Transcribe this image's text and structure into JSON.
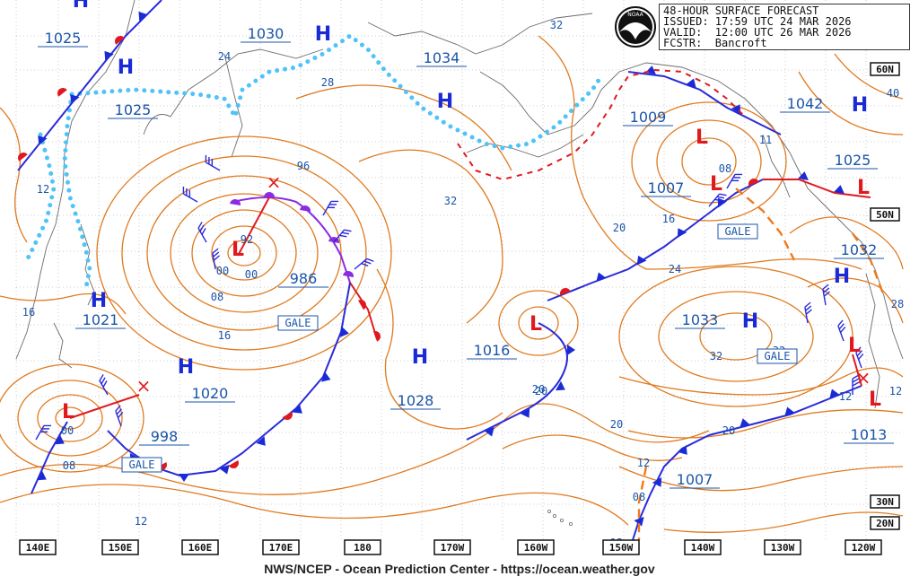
{
  "header": {
    "title": "48-HOUR SURFACE FORECAST",
    "issued": "ISSUED: 17:59 UTC 24 MAR 2026",
    "valid": "VALID:  12:00 UTC 26 MAR 2026",
    "forecaster": "FCSTR:  Bancroft",
    "logo_text": "NOAA"
  },
  "footer": {
    "credit": "NWS/NCEP - Ocean Prediction Center - https://ocean.weather.gov"
  },
  "colors": {
    "isobar": "#e07a1f",
    "high": "#1a2bd6",
    "low": "#e0191f",
    "ice": "#4fc3f7",
    "occluded": "#8a2be2",
    "label": "#1a55a8",
    "grid": "#9a9a9a"
  },
  "longitudes": [
    "140E",
    "150E",
    "160E",
    "170E",
    "180",
    "170W",
    "160W",
    "150W",
    "140W",
    "130W",
    "120W"
  ],
  "latitudes": [
    "60N",
    "50N",
    "30N",
    "20N"
  ],
  "pressure_centers": [
    {
      "type": "H",
      "value": "1025"
    },
    {
      "type": "H",
      "value": "1025"
    },
    {
      "type": "H",
      "value": "1030"
    },
    {
      "type": "H",
      "value": "1034"
    },
    {
      "type": "H",
      "value": "1021"
    },
    {
      "type": "H",
      "value": "1020"
    },
    {
      "type": "H",
      "value": "1028"
    },
    {
      "type": "H",
      "value": "1033"
    },
    {
      "type": "H",
      "value": "1042"
    },
    {
      "type": "H",
      "value": "1032"
    },
    {
      "type": "L",
      "value": "986"
    },
    {
      "type": "L",
      "value": "998"
    },
    {
      "type": "L",
      "value": "1016"
    },
    {
      "type": "L",
      "value": "1007"
    },
    {
      "type": "L",
      "value": "1009"
    },
    {
      "type": "L",
      "value": "1013"
    },
    {
      "type": "L",
      "value": "1007"
    },
    {
      "type": "L",
      "value": "1025"
    }
  ],
  "isobar_labels": [
    "24",
    "28",
    "32",
    "96",
    "92",
    "00",
    "08",
    "16",
    "12",
    "20",
    "00",
    "08",
    "12",
    "16",
    "20",
    "24",
    "32",
    "20",
    "12",
    "08",
    "12",
    "40",
    "28",
    "12",
    "16",
    "08",
    "11",
    "32",
    "20",
    "32",
    "20",
    "12",
    "00"
  ],
  "warnings": [
    "GALE",
    "GALE",
    "GALE",
    "GALE"
  ]
}
